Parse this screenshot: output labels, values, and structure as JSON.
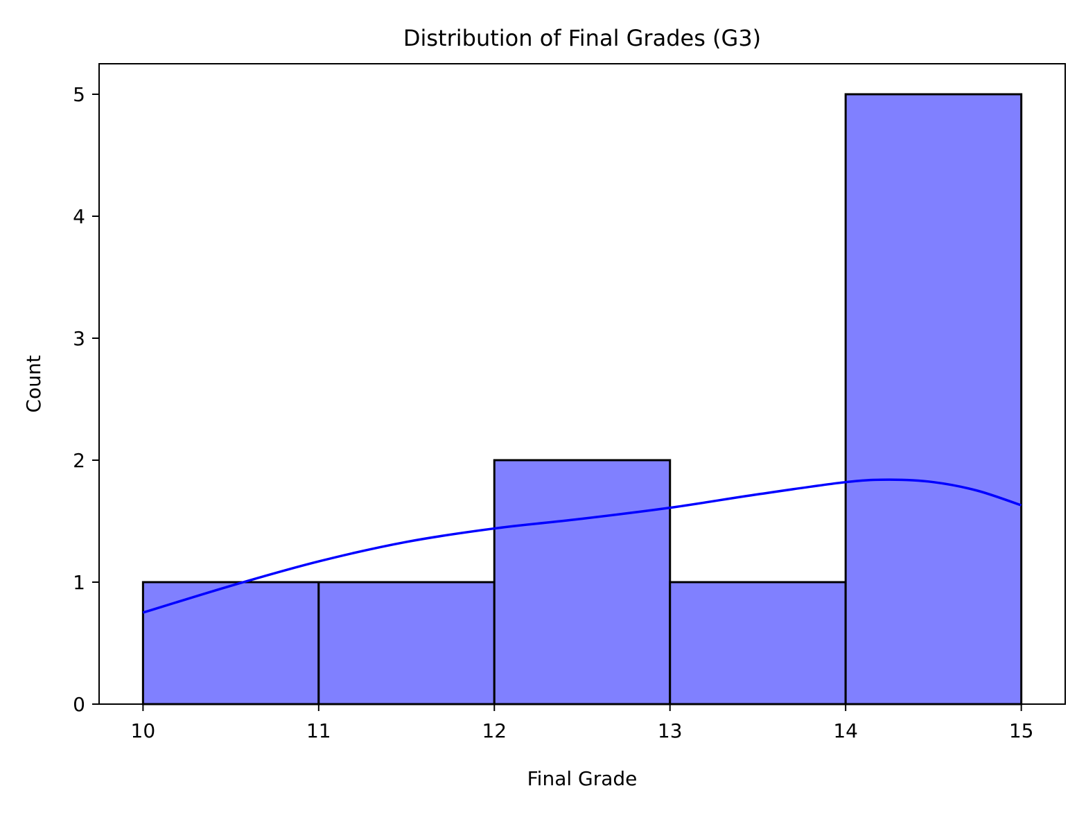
{
  "chart_data": {
    "type": "bar",
    "title": "Distribution of Final Grades (G3)",
    "xlabel": "Final Grade",
    "ylabel": "Count",
    "bins": [
      {
        "start": 10,
        "end": 11,
        "count": 1
      },
      {
        "start": 11,
        "end": 12,
        "count": 1
      },
      {
        "start": 12,
        "end": 13,
        "count": 2
      },
      {
        "start": 13,
        "end": 14,
        "count": 1
      },
      {
        "start": 14,
        "end": 15,
        "count": 5
      }
    ],
    "kde": {
      "x": [
        10,
        10.5,
        11,
        11.5,
        12,
        12.5,
        13,
        13.5,
        14,
        14.25,
        14.5,
        14.75,
        15
      ],
      "y": [
        0.75,
        0.97,
        1.17,
        1.33,
        1.44,
        1.52,
        1.61,
        1.72,
        1.82,
        1.84,
        1.82,
        1.75,
        1.63
      ]
    },
    "xlim": [
      9.75,
      15.25
    ],
    "ylim": [
      0,
      5.25
    ],
    "xticks": [
      10,
      11,
      12,
      13,
      14,
      15
    ],
    "yticks": [
      0,
      1,
      2,
      3,
      4,
      5
    ],
    "grid": false,
    "colors": {
      "bar_fill": "#8080ff",
      "bar_edge": "#000000",
      "kde_line": "#0000ff"
    }
  }
}
